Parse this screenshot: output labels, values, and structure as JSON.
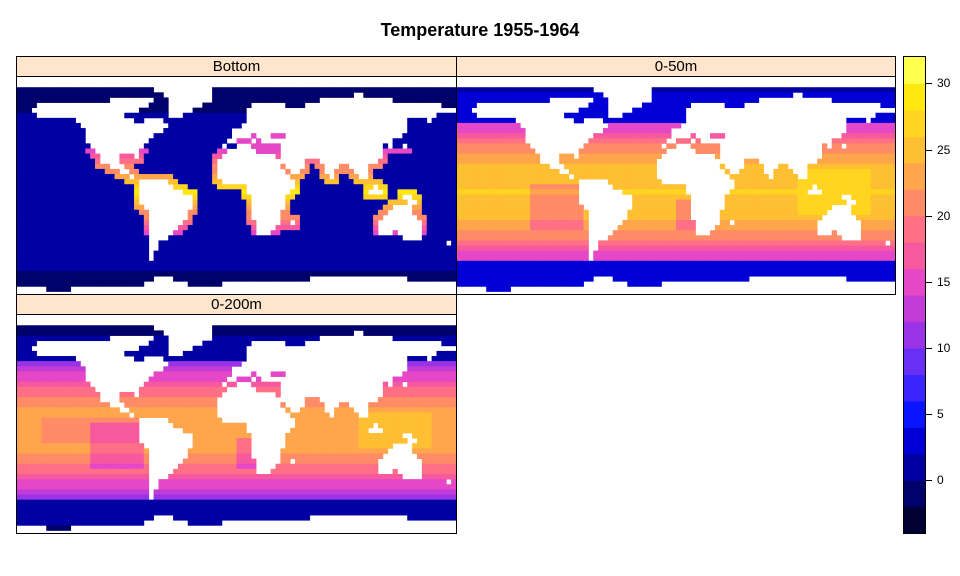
{
  "title": "Temperature 1955-1964",
  "panels": [
    {
      "label": "Bottom",
      "mode": "bottom"
    },
    {
      "label": "0-50m",
      "mode": "surface"
    },
    {
      "label": "0-200m",
      "mode": "mid"
    }
  ],
  "colorbar": {
    "min": -4,
    "max": 32,
    "colors": [
      "#000033",
      "#00006b",
      "#0000a3",
      "#0000d6",
      "#0a14ff",
      "#3b25ff",
      "#6a2ff5",
      "#9a33e6",
      "#c23bd6",
      "#e547c6",
      "#f7599f",
      "#ff6f86",
      "#ff8c66",
      "#ffa64d",
      "#ffbf33",
      "#ffd51f",
      "#ffe80f",
      "#ffff4d"
    ],
    "tick_labels": [
      "0",
      "5",
      "10",
      "15",
      "20",
      "25",
      "30"
    ],
    "tick_values": [
      0,
      5,
      10,
      15,
      20,
      25,
      30
    ]
  },
  "chart_data": {
    "type": "heatmap",
    "title": "Temperature 1955-1964",
    "panels": [
      "Bottom",
      "0-50m",
      "0-200m"
    ],
    "colorbar_range": [
      -4,
      32
    ],
    "colorbar_ticks": [
      0,
      5,
      10,
      15,
      20,
      25,
      30
    ]
  }
}
